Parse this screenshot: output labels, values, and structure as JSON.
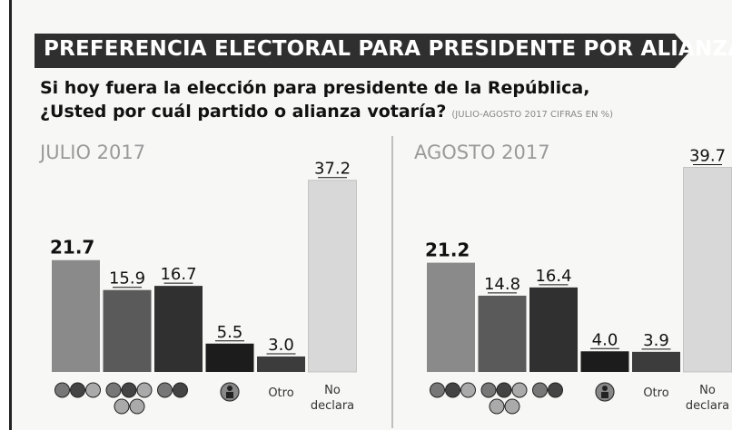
{
  "header": {
    "title": "PREFERENCIA ELECTORAL PARA PRESIDENTE POR ALIANZAS",
    "question_line1": "Si hoy fuera la elección para presidente de la República,",
    "question_line2": "¿Usted por cuál partido o alianza votaría?",
    "note": "(JULIO-AGOSTO 2017 CIFRAS EN %)"
  },
  "colors": {
    "c1": "#8a8a8a",
    "c2": "#5a5a5a",
    "c3": "#303030",
    "c4": "#1c1c1c",
    "c5": "#3c3c3c",
    "c6": "#d8d8d8"
  },
  "chart_data": [
    {
      "type": "bar",
      "title": "JULIO 2017",
      "categories": [
        "PAN-PRD-MC",
        "PRI-PVEM-NA-PES",
        "MORENA-PT",
        "Independiente",
        "Otro",
        "No declara"
      ],
      "category_icons": [
        "pan-prd-mc-logos",
        "pri-pvem-na-pes-logos",
        "morena-pt-logos",
        "independent-candidate-icon",
        "",
        ""
      ],
      "tick_labels": [
        "",
        "",
        "",
        "",
        "Otro",
        "No declara"
      ],
      "values": [
        21.7,
        15.9,
        16.7,
        5.5,
        3.0,
        37.2
      ],
      "value_labels": [
        "21.7",
        "15.9",
        "16.7",
        "5.5",
        "3.0",
        "37.2"
      ],
      "highlight_index": 0,
      "ylim": [
        0,
        40
      ]
    },
    {
      "type": "bar",
      "title": "AGOSTO 2017",
      "categories": [
        "PAN-PRD-MC",
        "PRI-PVEM-NA-PES",
        "MORENA-PT",
        "Independiente",
        "Otro",
        "No declara"
      ],
      "category_icons": [
        "pan-prd-mc-logos",
        "pri-pvem-na-pes-logos",
        "morena-pt-logos",
        "independent-candidate-icon",
        "",
        ""
      ],
      "tick_labels": [
        "",
        "",
        "",
        "",
        "Otro",
        "No declara"
      ],
      "values": [
        21.2,
        14.8,
        16.4,
        4.0,
        3.9,
        39.7
      ],
      "value_labels": [
        "21.2",
        "14.8",
        "16.4",
        "4.0",
        "3.9",
        "39.7"
      ],
      "highlight_index": 0,
      "ylim": [
        0,
        40
      ]
    }
  ]
}
